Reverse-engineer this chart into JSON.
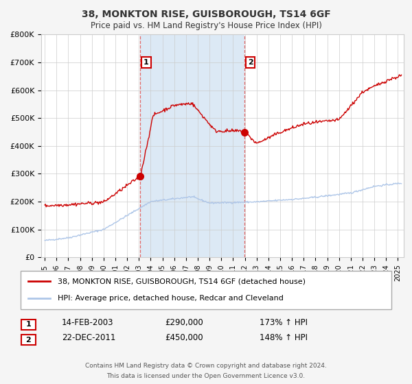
{
  "title": "38, MONKTON RISE, GUISBOROUGH, TS14 6GF",
  "subtitle": "Price paid vs. HM Land Registry's House Price Index (HPI)",
  "hpi_color": "#aec6e8",
  "price_color": "#cc0000",
  "span_color": "#dce9f5",
  "plot_bg_color": "#ffffff",
  "fig_bg_color": "#f5f5f5",
  "ylim": [
    0,
    800000
  ],
  "yticks": [
    0,
    100000,
    200000,
    300000,
    400000,
    500000,
    600000,
    700000,
    800000
  ],
  "ytick_labels": [
    "£0",
    "£100K",
    "£200K",
    "£300K",
    "£400K",
    "£500K",
    "£600K",
    "£700K",
    "£800K"
  ],
  "xlim_start": 1994.7,
  "xlim_end": 2025.5,
  "transaction1_date": 2003.12,
  "transaction1_price": 290000,
  "transaction1_label": "1",
  "transaction1_text": "14-FEB-2003",
  "transaction1_amount": "£290,000",
  "transaction1_hpi": "173% ↑ HPI",
  "transaction2_date": 2011.97,
  "transaction2_price": 450000,
  "transaction2_label": "2",
  "transaction2_text": "22-DEC-2011",
  "transaction2_amount": "£450,000",
  "transaction2_hpi": "148% ↑ HPI",
  "legend_label1": "38, MONKTON RISE, GUISBOROUGH, TS14 6GF (detached house)",
  "legend_label2": "HPI: Average price, detached house, Redcar and Cleveland",
  "footer1": "Contains HM Land Registry data © Crown copyright and database right 2024.",
  "footer2": "This data is licensed under the Open Government Licence v3.0."
}
